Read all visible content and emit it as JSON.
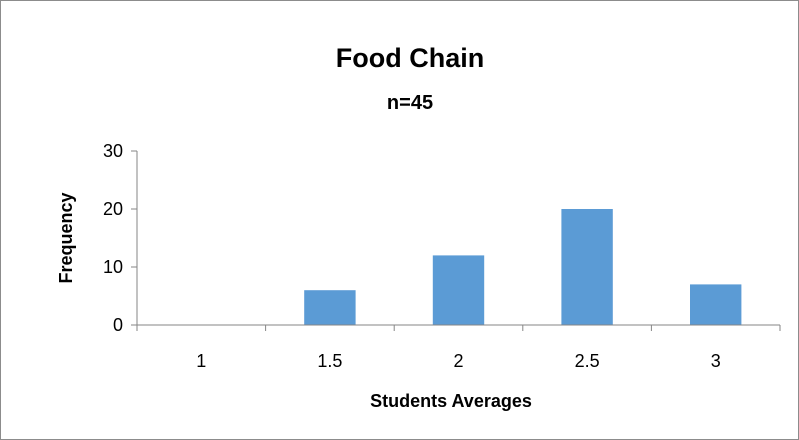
{
  "chart_data": {
    "type": "bar",
    "title": "Food Chain",
    "subtitle": "n=45",
    "xlabel": "Students Averages",
    "ylabel": "Frequency",
    "categories": [
      "1",
      "1.5",
      "2",
      "2.5",
      "3"
    ],
    "values": [
      0,
      6,
      12,
      20,
      7
    ],
    "ylim": [
      0,
      30
    ],
    "yticks": [
      "0",
      "10",
      "20",
      "30"
    ],
    "ytick_values": [
      0,
      10,
      20,
      30
    ],
    "grid": false,
    "legend": "none",
    "bar_color": "#5b9bd5"
  }
}
